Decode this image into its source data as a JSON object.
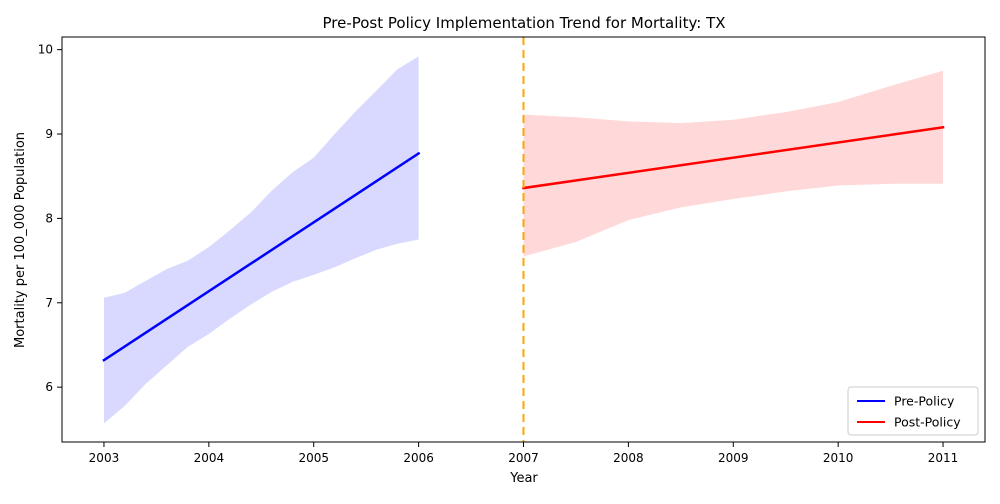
{
  "chart_data": {
    "type": "line",
    "title": "Pre-Post Policy Implementation Trend for Mortality: TX",
    "xlabel": "Year",
    "ylabel": "Mortality per 100_000 Population",
    "xlim": [
      2002.6,
      2011.4
    ],
    "ylim": [
      5.35,
      10.15
    ],
    "x_ticks": [
      "2003",
      "2004",
      "2005",
      "2006",
      "2007",
      "2008",
      "2009",
      "2010",
      "2011"
    ],
    "y_ticks": [
      "6",
      "7",
      "8",
      "9",
      "10"
    ],
    "policy_line": {
      "x": 2007,
      "color": "#ffa500",
      "style": "dashed"
    },
    "legend_position": "lower right",
    "series": [
      {
        "name": "Pre-Policy",
        "color": "#0000ff",
        "band_color": "#d9d9ff",
        "x": [
          2003,
          2006
        ],
        "y": [
          6.32,
          8.77
        ],
        "band": {
          "x": [
            2003.0,
            2003.2,
            2003.4,
            2003.6,
            2003.8,
            2004.0,
            2004.2,
            2004.4,
            2004.6,
            2004.8,
            2005.0,
            2005.2,
            2005.4,
            2005.6,
            2005.8,
            2006.0
          ],
          "upper": [
            7.06,
            7.12,
            7.26,
            7.4,
            7.5,
            7.66,
            7.86,
            8.07,
            8.33,
            8.55,
            8.72,
            9.0,
            9.27,
            9.52,
            9.77,
            9.92
          ],
          "lower": [
            5.57,
            5.78,
            6.04,
            6.26,
            6.48,
            6.63,
            6.81,
            6.98,
            7.13,
            7.25,
            7.33,
            7.42,
            7.53,
            7.63,
            7.7,
            7.75
          ]
        }
      },
      {
        "name": "Post-Policy",
        "color": "#ff0000",
        "band_color": "#ffd9d9",
        "x": [
          2007,
          2011
        ],
        "y": [
          8.36,
          9.08
        ],
        "band": {
          "x": [
            2007.0,
            2007.5,
            2008.0,
            2008.5,
            2009.0,
            2009.5,
            2010.0,
            2010.5,
            2011.0
          ],
          "upper": [
            9.23,
            9.2,
            9.15,
            9.13,
            9.17,
            9.26,
            9.38,
            9.57,
            9.75
          ],
          "lower": [
            7.55,
            7.72,
            7.98,
            8.13,
            8.23,
            8.32,
            8.39,
            8.41,
            8.41
          ]
        }
      }
    ]
  }
}
